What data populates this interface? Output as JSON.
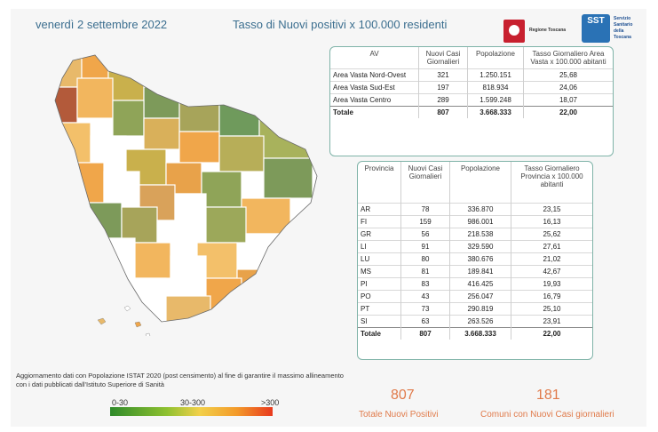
{
  "header": {
    "date": "venerdì 2 settembre 2022",
    "title": "Tasso di Nuovi positivi x 100.000 residenti"
  },
  "logos": {
    "regione": "Regione Toscana",
    "sst_mark": "SST",
    "sst_text_1": "Servizio",
    "sst_text_2": "Sanitario",
    "sst_text_3": "della",
    "sst_text_4": "Toscana"
  },
  "av_table": {
    "headers": [
      "AV",
      "Nuovi Casi Giornalieri",
      "Popolazione",
      "Tasso Giornaliero Area Vasta x 100.000 abitanti"
    ],
    "rows": [
      {
        "name": "Area Vasta Nord-Ovest",
        "casi": "321",
        "pop": "1.250.151",
        "tasso": "25,68"
      },
      {
        "name": "Area Vasta Sud-Est",
        "casi": "197",
        "pop": "818.934",
        "tasso": "24,06"
      },
      {
        "name": "Area Vasta Centro",
        "casi": "289",
        "pop": "1.599.248",
        "tasso": "18,07"
      }
    ],
    "total": {
      "name": "Totale",
      "casi": "807",
      "pop": "3.668.333",
      "tasso": "22,00"
    }
  },
  "prov_table": {
    "headers": [
      "Provincia",
      "Nuovi Casi Giornalieri",
      "Popolazione",
      "Tasso Giornaliero Provincia x 100.000 abitanti"
    ],
    "rows": [
      {
        "name": "AR",
        "casi": "78",
        "pop": "336.870",
        "tasso": "23,15"
      },
      {
        "name": "FI",
        "casi": "159",
        "pop": "986.001",
        "tasso": "16,13"
      },
      {
        "name": "GR",
        "casi": "56",
        "pop": "218.538",
        "tasso": "25,62"
      },
      {
        "name": "LI",
        "casi": "91",
        "pop": "329.590",
        "tasso": "27,61"
      },
      {
        "name": "LU",
        "casi": "80",
        "pop": "380.676",
        "tasso": "21,02"
      },
      {
        "name": "MS",
        "casi": "81",
        "pop": "189.841",
        "tasso": "42,67"
      },
      {
        "name": "PI",
        "casi": "83",
        "pop": "416.425",
        "tasso": "19,93"
      },
      {
        "name": "PO",
        "casi": "43",
        "pop": "256.047",
        "tasso": "16,79"
      },
      {
        "name": "PT",
        "casi": "73",
        "pop": "290.819",
        "tasso": "25,10"
      },
      {
        "name": "SI",
        "casi": "63",
        "pop": "263.526",
        "tasso": "23,91"
      }
    ],
    "total": {
      "name": "Totale",
      "casi": "807",
      "pop": "3.668.333",
      "tasso": "22,00"
    }
  },
  "stats": {
    "nuovi_positivi_value": "807",
    "nuovi_positivi_label": "Totale Nuovi Positivi",
    "comuni_value": "181",
    "comuni_label": "Comuni con Nuovi Casi giornalieri"
  },
  "note": "Aggiornamento dati con Popolazione ISTAT 2020 (post censimento) al fine di garantire il massimo allineamento con i dati pubblicati dall'Istituto Superiore di Sanità",
  "legend": {
    "low": "0-30",
    "mid": "30-300",
    "high": ">300"
  },
  "colors": {
    "accent": "#e07a4a",
    "header_text": "#3b6e8f",
    "table_border": "#7fb3a8",
    "low": "#7d9a5a",
    "mid": "#c9b04c",
    "high": "#f0a64a"
  }
}
